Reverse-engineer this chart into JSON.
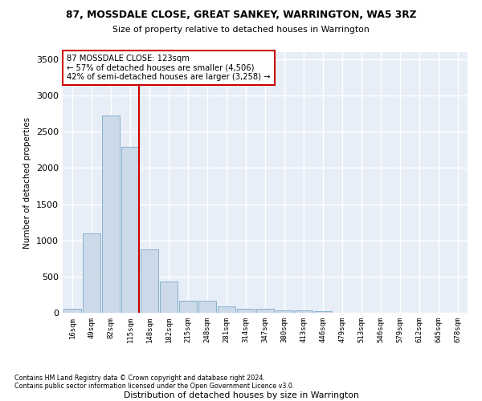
{
  "title": "87, MOSSDALE CLOSE, GREAT SANKEY, WARRINGTON, WA5 3RZ",
  "subtitle": "Size of property relative to detached houses in Warrington",
  "xlabel": "Distribution of detached houses by size in Warrington",
  "ylabel": "Number of detached properties",
  "bar_color": "#ccd9e8",
  "bar_edge_color": "#7aaac8",
  "background_color": "#e8eef8",
  "grid_color": "#ffffff",
  "annotation_line1": "87 MOSSDALE CLOSE: 123sqm",
  "annotation_line2": "← 57% of detached houses are smaller (4,506)",
  "annotation_line3": "42% of semi-detached houses are larger (3,258) →",
  "vline_color": "#cc0000",
  "categories": [
    "16sqm",
    "49sqm",
    "82sqm",
    "115sqm",
    "148sqm",
    "182sqm",
    "215sqm",
    "248sqm",
    "281sqm",
    "314sqm",
    "347sqm",
    "380sqm",
    "413sqm",
    "446sqm",
    "479sqm",
    "513sqm",
    "546sqm",
    "579sqm",
    "612sqm",
    "645sqm",
    "678sqm"
  ],
  "values": [
    50,
    1100,
    2730,
    2290,
    880,
    430,
    170,
    165,
    90,
    60,
    50,
    30,
    28,
    20,
    5,
    2,
    1,
    0,
    0,
    0,
    0
  ],
  "ylim": [
    0,
    3600
  ],
  "yticks": [
    0,
    500,
    1000,
    1500,
    2000,
    2500,
    3000,
    3500
  ],
  "footnote1": "Contains HM Land Registry data © Crown copyright and database right 2024.",
  "footnote2": "Contains public sector information licensed under the Open Government Licence v3.0."
}
